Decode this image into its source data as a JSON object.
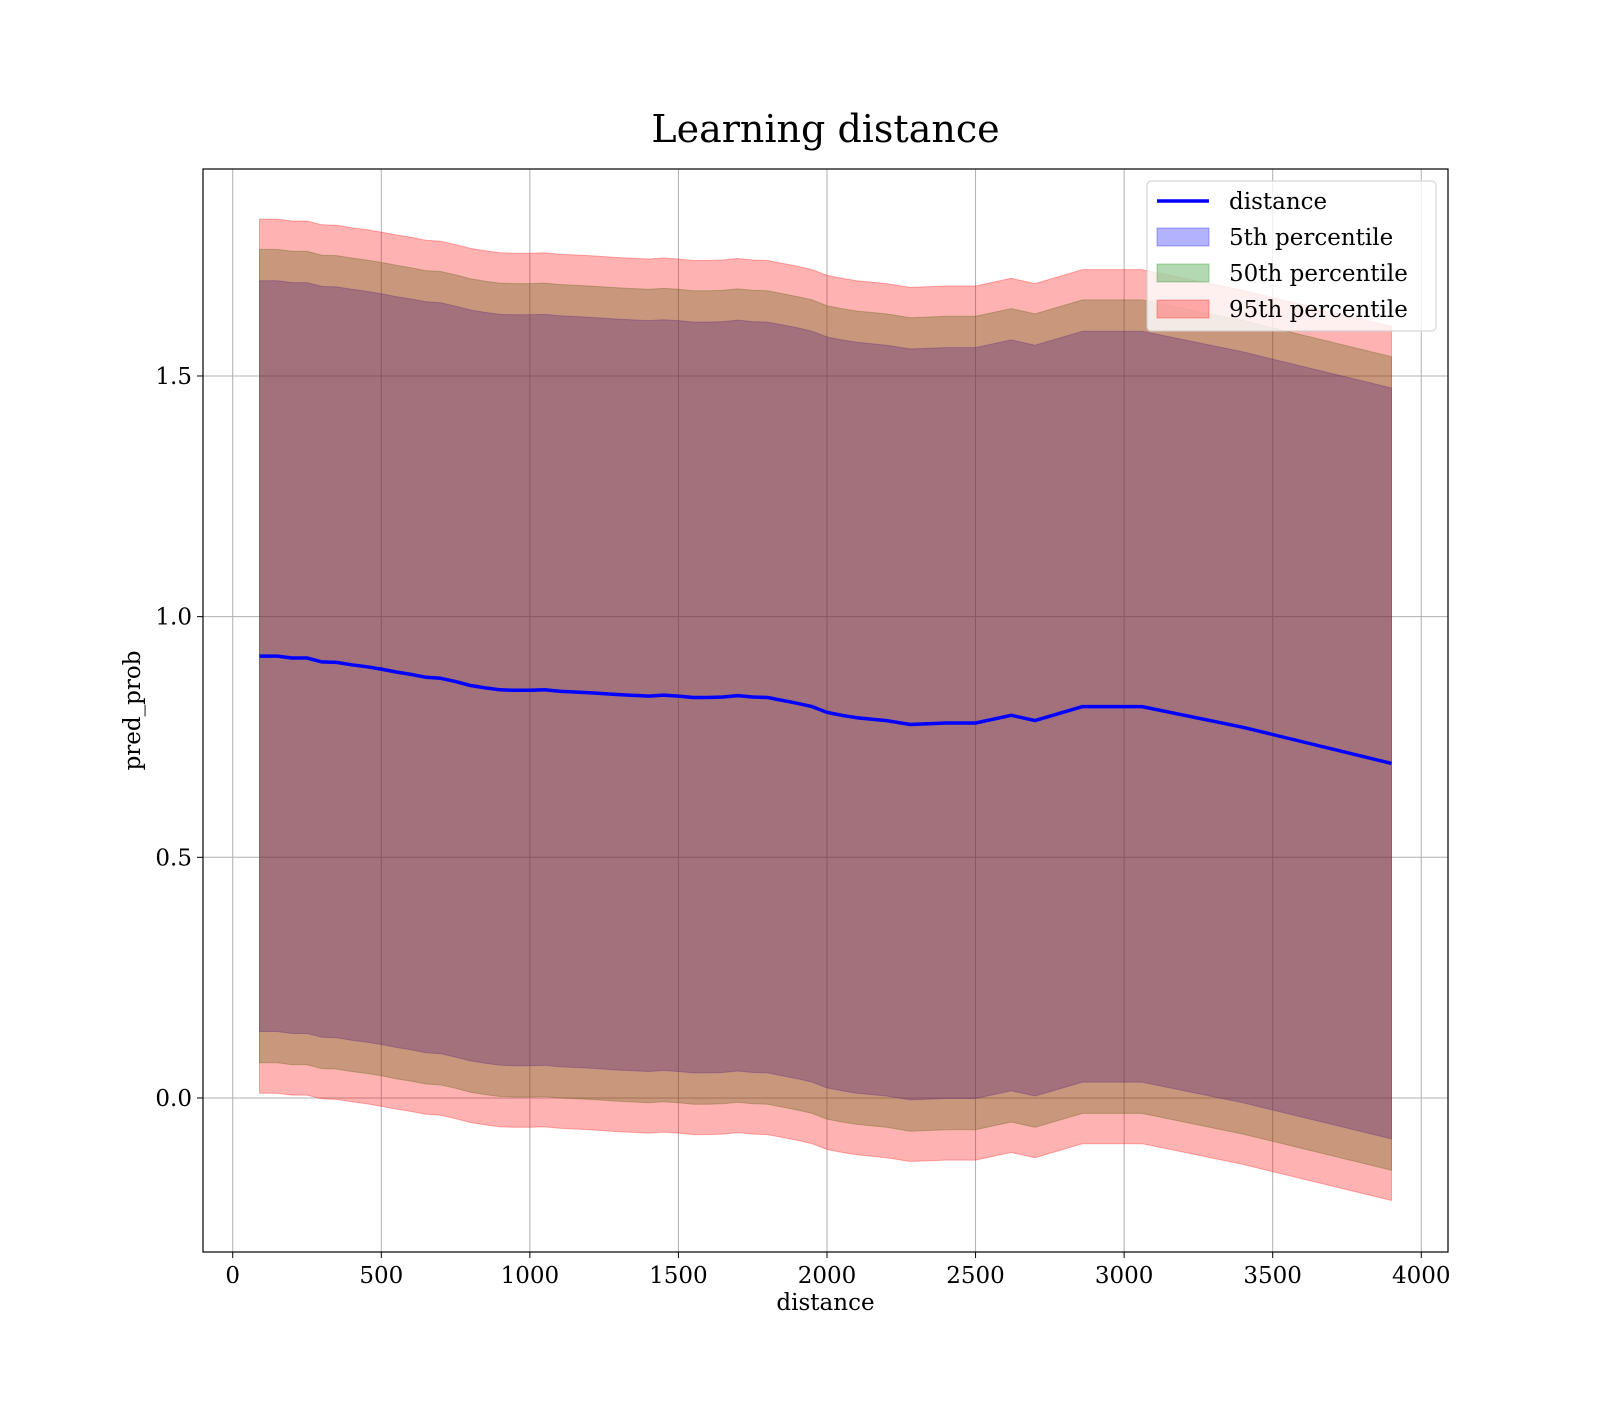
{
  "chart_data": {
    "type": "area",
    "title": "Learning distance",
    "xlabel": "distance",
    "ylabel": "pred_prob",
    "xlim": [
      -100,
      4090
    ],
    "ylim": [
      -0.32,
      1.93
    ],
    "xticks": [
      0,
      500,
      1000,
      1500,
      2000,
      2500,
      3000,
      3500,
      4000
    ],
    "xtick_labels": [
      "0",
      "500",
      "1000",
      "1500",
      "2000",
      "2500",
      "3000",
      "3500",
      "4000"
    ],
    "yticks": [
      0.0,
      0.5,
      1.0,
      1.5
    ],
    "ytick_labels": [
      "0.0",
      "0.5",
      "1.0",
      "1.5"
    ],
    "grid": true,
    "legend_position": "top-right",
    "x": [
      90,
      150,
      200,
      250,
      300,
      350,
      400,
      450,
      500,
      550,
      600,
      650,
      700,
      750,
      800,
      850,
      900,
      950,
      1000,
      1050,
      1100,
      1200,
      1300,
      1400,
      1450,
      1500,
      1550,
      1600,
      1650,
      1700,
      1750,
      1800,
      1900,
      1950,
      2000,
      2050,
      2100,
      2200,
      2280,
      2400,
      2500,
      2620,
      2700,
      2860,
      3060,
      3400,
      3900
    ],
    "series": [
      {
        "name": "distance",
        "kind": "line",
        "color": "#0000ff",
        "values": [
          0.918,
          0.918,
          0.914,
          0.914,
          0.906,
          0.905,
          0.9,
          0.896,
          0.891,
          0.885,
          0.88,
          0.874,
          0.872,
          0.865,
          0.857,
          0.852,
          0.848,
          0.847,
          0.847,
          0.848,
          0.845,
          0.842,
          0.838,
          0.835,
          0.837,
          0.835,
          0.832,
          0.832,
          0.833,
          0.836,
          0.833,
          0.832,
          0.82,
          0.813,
          0.801,
          0.795,
          0.79,
          0.784,
          0.776,
          0.779,
          0.779,
          0.795,
          0.784,
          0.813,
          0.813,
          0.77,
          0.695
        ]
      },
      {
        "name": "5th percentile",
        "kind": "band",
        "color": "#0000ff",
        "opacity": 0.3,
        "values_lower": [
          0.138,
          0.138,
          0.134,
          0.134,
          0.126,
          0.125,
          0.12,
          0.116,
          0.111,
          0.105,
          0.1,
          0.094,
          0.092,
          0.085,
          0.077,
          0.072,
          0.068,
          0.067,
          0.067,
          0.068,
          0.065,
          0.062,
          0.058,
          0.055,
          0.057,
          0.055,
          0.052,
          0.052,
          0.053,
          0.056,
          0.053,
          0.052,
          0.04,
          0.033,
          0.021,
          0.015,
          0.01,
          0.004,
          -0.004,
          -0.001,
          -0.001,
          0.015,
          0.004,
          0.033,
          0.033,
          -0.01,
          -0.085
        ],
        "values_upper": [
          1.698,
          1.698,
          1.694,
          1.694,
          1.686,
          1.685,
          1.68,
          1.676,
          1.671,
          1.665,
          1.66,
          1.654,
          1.652,
          1.645,
          1.637,
          1.632,
          1.628,
          1.627,
          1.627,
          1.628,
          1.625,
          1.622,
          1.618,
          1.615,
          1.617,
          1.615,
          1.612,
          1.612,
          1.613,
          1.616,
          1.613,
          1.612,
          1.6,
          1.593,
          1.581,
          1.575,
          1.57,
          1.564,
          1.556,
          1.559,
          1.559,
          1.575,
          1.564,
          1.593,
          1.593,
          1.55,
          1.475
        ]
      },
      {
        "name": "50th percentile",
        "kind": "band",
        "color": "#008000",
        "opacity": 0.3,
        "values_lower": [
          0.073,
          0.073,
          0.069,
          0.069,
          0.061,
          0.06,
          0.055,
          0.051,
          0.046,
          0.04,
          0.035,
          0.029,
          0.027,
          0.02,
          0.012,
          0.007,
          0.003,
          0.002,
          0.002,
          0.003,
          0.0,
          -0.003,
          -0.007,
          -0.01,
          -0.008,
          -0.01,
          -0.013,
          -0.013,
          -0.012,
          -0.009,
          -0.012,
          -0.013,
          -0.025,
          -0.032,
          -0.044,
          -0.05,
          -0.055,
          -0.061,
          -0.069,
          -0.066,
          -0.066,
          -0.05,
          -0.061,
          -0.032,
          -0.032,
          -0.075,
          -0.15
        ],
        "values_upper": [
          1.763,
          1.763,
          1.759,
          1.759,
          1.751,
          1.75,
          1.745,
          1.741,
          1.736,
          1.73,
          1.725,
          1.719,
          1.717,
          1.71,
          1.702,
          1.697,
          1.693,
          1.692,
          1.692,
          1.693,
          1.69,
          1.687,
          1.683,
          1.68,
          1.682,
          1.68,
          1.677,
          1.677,
          1.678,
          1.681,
          1.678,
          1.677,
          1.665,
          1.658,
          1.646,
          1.64,
          1.635,
          1.629,
          1.621,
          1.624,
          1.624,
          1.64,
          1.629,
          1.658,
          1.658,
          1.615,
          1.54
        ]
      },
      {
        "name": "95th percentile",
        "kind": "band",
        "color": "#ff0000",
        "opacity": 0.3,
        "values_lower": [
          0.01,
          0.01,
          0.006,
          0.006,
          -0.002,
          -0.003,
          -0.008,
          -0.012,
          -0.017,
          -0.023,
          -0.028,
          -0.034,
          -0.036,
          -0.043,
          -0.051,
          -0.056,
          -0.06,
          -0.061,
          -0.061,
          -0.06,
          -0.063,
          -0.066,
          -0.07,
          -0.073,
          -0.071,
          -0.073,
          -0.076,
          -0.076,
          -0.075,
          -0.072,
          -0.075,
          -0.076,
          -0.088,
          -0.095,
          -0.107,
          -0.113,
          -0.118,
          -0.124,
          -0.132,
          -0.129,
          -0.129,
          -0.113,
          -0.124,
          -0.095,
          -0.095,
          -0.138,
          -0.213
        ],
        "values_upper": [
          1.826,
          1.826,
          1.822,
          1.822,
          1.814,
          1.813,
          1.808,
          1.804,
          1.799,
          1.793,
          1.788,
          1.782,
          1.78,
          1.773,
          1.765,
          1.76,
          1.756,
          1.755,
          1.755,
          1.756,
          1.753,
          1.75,
          1.746,
          1.743,
          1.745,
          1.743,
          1.74,
          1.74,
          1.741,
          1.744,
          1.741,
          1.74,
          1.728,
          1.721,
          1.709,
          1.703,
          1.698,
          1.692,
          1.684,
          1.687,
          1.687,
          1.703,
          1.692,
          1.721,
          1.721,
          1.678,
          1.603
        ]
      }
    ]
  }
}
